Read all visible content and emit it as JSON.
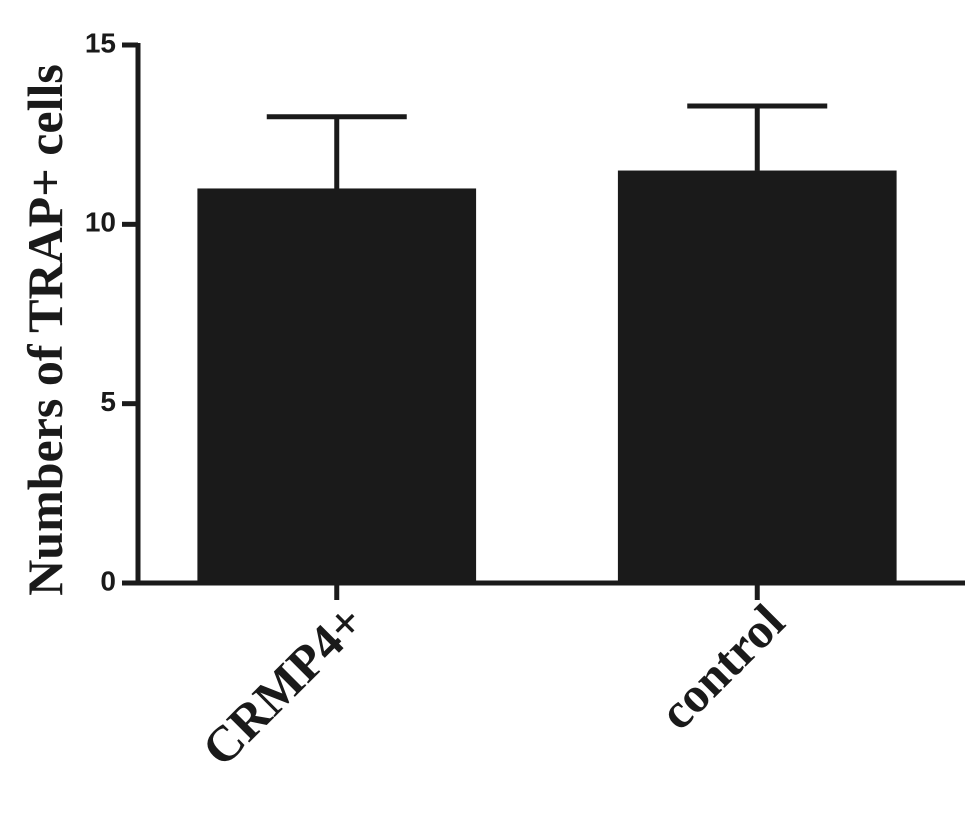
{
  "chart_data": {
    "type": "bar",
    "y_label": "Numbers of TRAP+ cells",
    "categories": [
      "CRMP4+",
      "control"
    ],
    "values": [
      11,
      11.5
    ],
    "errors": [
      2,
      1.8
    ],
    "color": "#1a1a1a",
    "ylim": [
      0,
      15
    ],
    "yticks": [
      0,
      5,
      10,
      15
    ],
    "grid": false
  }
}
